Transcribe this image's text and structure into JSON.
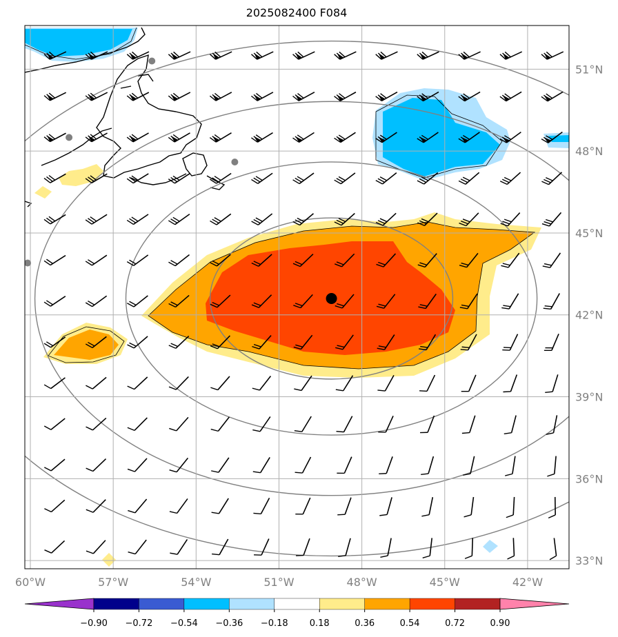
{
  "title": "2025082400 F084",
  "map": {
    "lon_range": [
      -60.2,
      -40.5
    ],
    "lat_range": [
      32.7,
      52.6
    ],
    "lat_ticks": [
      {
        "value": 51,
        "label": "51°N"
      },
      {
        "value": 48,
        "label": "48°N"
      },
      {
        "value": 45,
        "label": "45°N"
      },
      {
        "value": 42,
        "label": "42°N"
      },
      {
        "value": 39,
        "label": "39°N"
      },
      {
        "value": 36,
        "label": "36°N"
      },
      {
        "value": 33,
        "label": "33°N"
      }
    ],
    "lon_ticks": [
      {
        "value": -60,
        "label": "60°W"
      },
      {
        "value": -57,
        "label": "57°W"
      },
      {
        "value": -54,
        "label": "54°W"
      },
      {
        "value": -51,
        "label": "51°W"
      },
      {
        "value": -48,
        "label": "48°W"
      },
      {
        "value": -45,
        "label": "45°W"
      },
      {
        "value": -42,
        "label": "42°W"
      }
    ],
    "center_point": {
      "lon": -49.1,
      "lat": 42.6
    },
    "range_rings_deg": [
      3.6,
      6.1,
      8.8,
      11.5
    ],
    "gray_station_points": [
      {
        "lon": -55.6,
        "lat": 51.3
      },
      {
        "lon": -58.6,
        "lat": 48.5
      },
      {
        "lon": -52.6,
        "lat": 47.6
      },
      {
        "lon": -60.1,
        "lat": 43.9
      }
    ],
    "wind_barbs": {
      "lons": [
        -59.0,
        -57.5,
        -56.0,
        -54.5,
        -53.0,
        -51.5,
        -50.0,
        -48.5,
        -47.0,
        -45.5,
        -44.0,
        -42.5,
        -41.0
      ],
      "lats": [
        51.5,
        50.0,
        48.5,
        47.0,
        45.5,
        44.0,
        42.5,
        41.0,
        39.5,
        38.0,
        36.5,
        35.0,
        33.5
      ]
    }
  },
  "colorbar": {
    "colors": [
      "#9932cc",
      "#00008b",
      "#3a5bd2",
      "#00bfff",
      "#b0e2ff",
      "#ffffff",
      "#ffec8b",
      "#ffa500",
      "#ff4500",
      "#b22222",
      "#ff82ab"
    ],
    "labels": [
      "−0.90",
      "−0.72",
      "−0.54",
      "−0.36",
      "−0.18",
      "0.18",
      "0.36",
      "0.54",
      "0.72",
      "0.90"
    ]
  }
}
